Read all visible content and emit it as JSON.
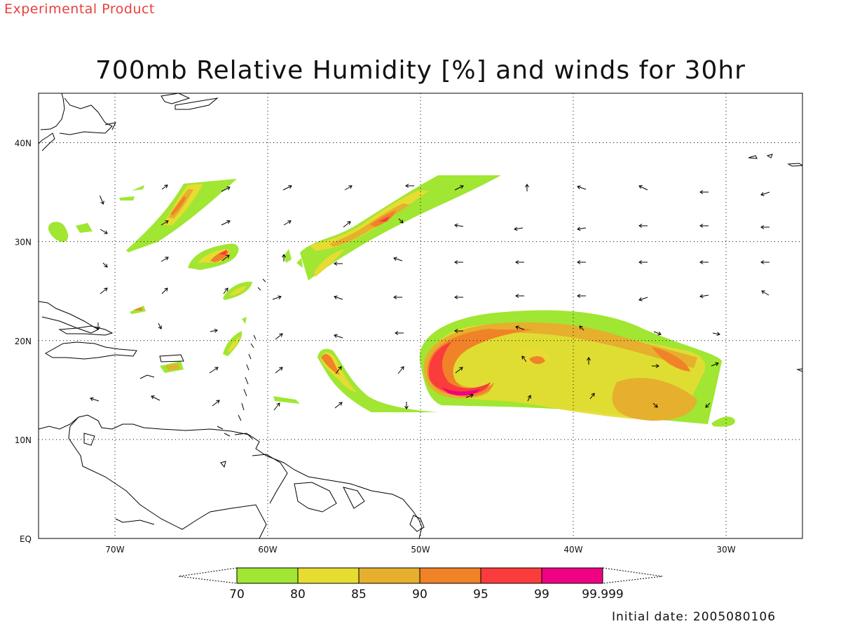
{
  "header": {
    "product_label": "Experimental Product",
    "title": "700mb Relative Humidity [%] and winds for 30hr"
  },
  "map": {
    "lon_range": [
      -75,
      -25
    ],
    "lat_range": [
      0,
      45
    ],
    "grid": "dotted",
    "lon_ticks": [
      {
        "value": -70,
        "label": "70W"
      },
      {
        "value": -60,
        "label": "60W"
      },
      {
        "value": -50,
        "label": "50W"
      },
      {
        "value": -40,
        "label": "40W"
      },
      {
        "value": -30,
        "label": "30W"
      }
    ],
    "lat_ticks": [
      {
        "value": 0,
        "label": "EQ"
      },
      {
        "value": 10,
        "label": "10N"
      },
      {
        "value": 20,
        "label": "20N"
      },
      {
        "value": 30,
        "label": "30N"
      },
      {
        "value": 40,
        "label": "40N"
      }
    ]
  },
  "colorbar": {
    "labels": [
      "70",
      "80",
      "85",
      "90",
      "95",
      "99",
      "99.999"
    ],
    "colors": [
      "#a0e632",
      "#e6dc32",
      "#e6af2d",
      "#f08228",
      "#fa3c3c",
      "#f00082"
    ],
    "ends": "triangular"
  },
  "footer": {
    "initial_date": "Initial date: 2005080106"
  },
  "palette": {
    "product_label": "#e8413c",
    "coast": "#000000"
  }
}
